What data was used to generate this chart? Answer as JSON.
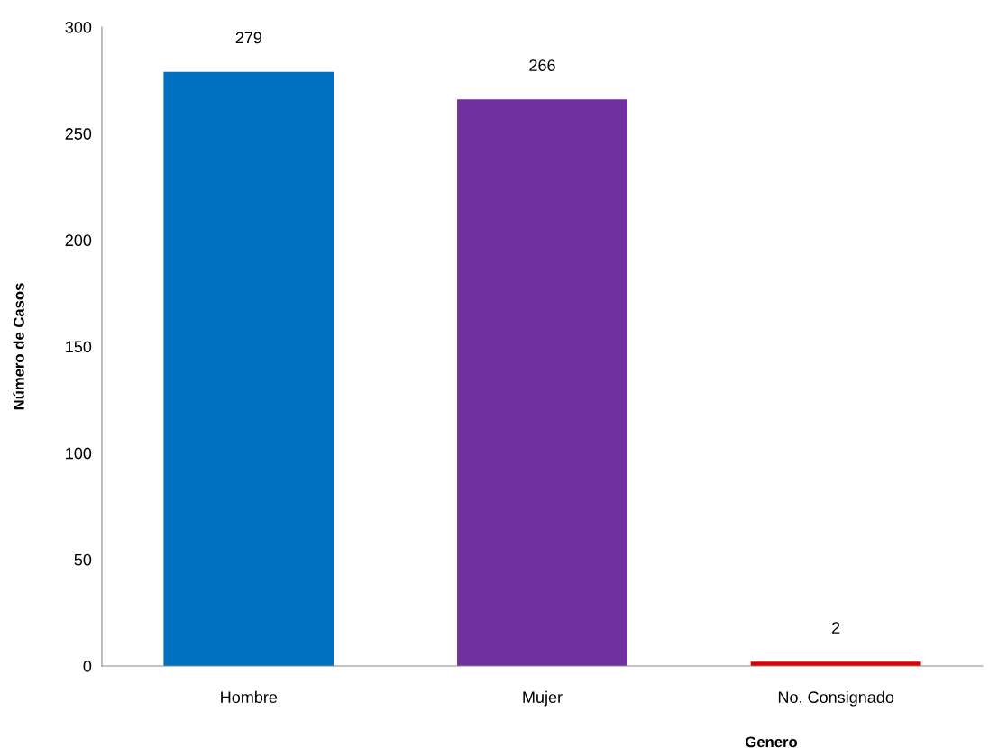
{
  "chart_data": {
    "type": "bar",
    "xlabel": "Genero",
    "ylabel": "Número de Casos",
    "categories": [
      "Hombre",
      "Mujer",
      "No. Consignado"
    ],
    "values": [
      279,
      266,
      2
    ],
    "colors": [
      "#0070c0",
      "#7030a0",
      "#e00000"
    ],
    "ylim": [
      0,
      300
    ],
    "yticks": [
      0,
      50,
      100,
      150,
      200,
      250,
      300
    ],
    "data_labels": true,
    "grid": false,
    "legend": false
  }
}
